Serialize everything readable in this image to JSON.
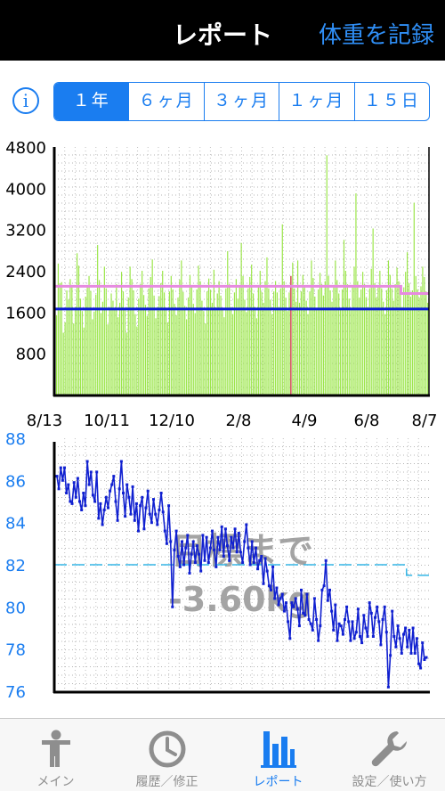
{
  "header": {
    "title": "レポート",
    "action_label": "体重を記録"
  },
  "info_icon": {
    "name": "info-icon",
    "glyph": "i"
  },
  "range_tabs": [
    {
      "label": "１年",
      "active": true
    },
    {
      "label": "６ヶ月",
      "active": false
    },
    {
      "label": "３ヶ月",
      "active": false
    },
    {
      "label": "１ヶ月",
      "active": false
    },
    {
      "label": "１５日",
      "active": false
    }
  ],
  "tabbar": [
    {
      "label": "メイン",
      "icon": "person-icon",
      "active": false
    },
    {
      "label": "履歴／修正",
      "icon": "clock-icon",
      "active": false
    },
    {
      "label": "レポート",
      "icon": "bar-chart-icon",
      "active": true
    },
    {
      "label": "設定／使い方",
      "icon": "wrench-icon",
      "active": false
    }
  ],
  "colors": {
    "accent": "#1a7df0",
    "calorie_bars": "#9be64a",
    "target_calorie_line": "#e78be0",
    "base_calorie_line": "#0a1bd6",
    "weight_line": "#1020d0",
    "goal_line": "#35b6e6",
    "overlay_text": "#9a9a9a"
  },
  "x_labels": [
    "8/13",
    "10/11",
    "12/10",
    "2/8",
    "4/9",
    "6/8",
    "8/7"
  ],
  "chart_data": [
    {
      "type": "bar",
      "title": "",
      "ylim": [
        0,
        4800
      ],
      "yticks": [
        800,
        1600,
        2400,
        3200,
        4000,
        4800
      ],
      "x_tick_labels": [
        "8/13",
        "10/11",
        "12/10",
        "2/8",
        "4/9",
        "6/8",
        "8/7"
      ],
      "grid": true,
      "reference_lines": [
        {
          "value_segments": [
            [
              0,
              0.925,
              2100
            ],
            [
              0.925,
              1.0,
              1960
            ]
          ],
          "color": "#e78be0"
        },
        {
          "value": 1660,
          "color": "#0a1bd6"
        }
      ],
      "series": [
        {
          "values": [
            2060,
            1540,
            2540,
            2160,
            2180,
            1200,
            1400,
            2020,
            1840,
            2240,
            2120,
            1380,
            1700,
            2740,
            2500,
            1860,
            1620,
            1300,
            1900,
            2080,
            2300,
            2010,
            1460,
            1610,
            1940,
            2900,
            2220,
            1580,
            1800,
            2480,
            2060,
            1360,
            1700,
            1960,
            1820,
            1680,
            2140,
            1500,
            1780,
            2380,
            2000,
            1640,
            1200,
            1880,
            2480,
            2240,
            2020,
            1560,
            1320,
            1860,
            2140,
            2400,
            1930,
            1740,
            1520,
            2060,
            2280,
            2620,
            1920,
            1480,
            1700,
            1910,
            2160,
            2400,
            1980,
            1640,
            1400,
            2000,
            2300,
            2040,
            1760,
            1540,
            1880,
            2230,
            2600,
            1990,
            1720,
            1460,
            1880,
            2320,
            2080,
            1760,
            1580,
            2040,
            2500,
            2200,
            1820,
            1620,
            1380,
            2000,
            2250,
            2030,
            1780,
            2420,
            1690,
            1960,
            2200,
            1920,
            1640,
            1500,
            2060,
            2780,
            2140,
            1700,
            1560,
            1980,
            2240,
            1860,
            2120,
            2940,
            2300,
            1840,
            1600,
            2060,
            2280,
            2520,
            1960,
            1700,
            1480,
            2100,
            2400,
            1990,
            1780,
            2200,
            2660,
            2060,
            1840,
            1560,
            2000,
            2200,
            1980,
            1700,
            2060,
            3300,
            2200,
            1880,
            1620,
            1980,
            2300,
            2560,
            2060,
            1800,
            2600,
            1780,
            2000,
            2320,
            2120,
            1820,
            1560,
            2000,
            2600,
            2260,
            1900,
            1680,
            2040,
            2360,
            2140,
            1920,
            2200,
            4640,
            2300,
            2020,
            1800,
            2100,
            2600,
            2220,
            1960,
            1680,
            2040,
            3000,
            2400,
            2140,
            1860,
            1640,
            2120,
            2480,
            3900,
            2200,
            1880,
            2040,
            2380,
            2140,
            1880,
            1700,
            2060,
            2440,
            3220,
            2160,
            1880,
            2100,
            2400,
            2060,
            1800,
            1560,
            2020,
            2600,
            2320,
            2060,
            1820,
            2140,
            2460,
            2200,
            1940,
            1700,
            2080,
            2380,
            2760,
            2160,
            1900,
            2020,
            3720,
            2300,
            2040,
            1880,
            2100,
            2480,
            2280,
            2000,
            1780
          ]
        }
      ]
    },
    {
      "type": "line",
      "title": "",
      "ylim": [
        76,
        88
      ],
      "yticks": [
        76,
        78,
        80,
        82,
        84,
        86,
        88
      ],
      "grid": true,
      "overlay_text": [
        "目標まで",
        "-3.60kg"
      ],
      "reference_lines": [
        {
          "value": 82.0,
          "style": "dashed",
          "color": "#35b6e6",
          "segments": [
            [
              0,
              0.94,
              82.0
            ],
            [
              0.94,
              1.0,
              81.5
            ]
          ]
        }
      ],
      "series": [
        {
          "values": [
            86.2,
            85.6,
            86.6,
            86.0,
            86.6,
            85.4,
            85.8,
            85.0,
            84.9,
            85.9,
            85.2,
            86.1,
            85.0,
            84.6,
            85.4,
            84.8,
            86.9,
            85.8,
            86.4,
            85.3,
            85.0,
            86.4,
            84.2,
            84.9,
            83.9,
            84.6,
            85.2,
            84.7,
            85.5,
            85.8,
            86.2,
            85.0,
            84.1,
            85.6,
            86.9,
            85.4,
            84.3,
            85.8,
            85.2,
            84.4,
            85.7,
            84.1,
            84.9,
            83.6,
            84.8,
            85.2,
            83.7,
            84.7,
            85.5,
            84.4,
            84.0,
            85.1,
            84.4,
            83.9,
            84.6,
            85.4,
            84.5,
            83.6,
            83.0,
            84.8,
            83.1,
            80.0,
            82.7,
            83.6,
            82.4,
            81.9,
            83.1,
            82.0,
            82.8,
            83.4,
            81.6,
            82.5,
            83.1,
            82.1,
            82.9,
            82.5,
            81.7,
            83.4,
            82.2,
            83.3,
            82.1,
            82.8,
            83.6,
            82.7,
            81.9,
            83.3,
            82.7,
            83.8,
            82.4,
            83.7,
            82.9,
            82.2,
            83.3,
            82.8,
            83.7,
            82.6,
            83.5,
            82.6,
            82.1,
            83.1,
            83.9,
            82.8,
            82.0,
            83.1,
            82.1,
            82.8,
            81.8,
            82.2,
            82.4,
            81.1,
            82.3,
            81.7,
            81.0,
            80.8,
            81.9,
            80.4,
            80.9,
            80.1,
            80.4,
            80.6,
            79.8,
            80.2,
            79.3,
            78.5,
            80.2,
            80.0,
            80.4,
            79.9,
            79.1,
            80.8,
            79.7,
            79.6,
            80.6,
            79.4,
            79.2,
            78.9,
            80.4,
            79.4,
            78.4,
            79.1,
            80.8,
            81.0,
            82.2,
            80.3,
            80.8,
            79.8,
            78.9,
            80.1,
            78.4,
            79.2,
            79.1,
            78.7,
            79.4,
            80.0,
            79.3,
            78.4,
            79.3,
            78.5,
            78.8,
            79.9,
            78.6,
            78.3,
            79.6,
            79.0,
            78.6,
            80.2,
            79.7,
            78.6,
            79.5,
            80.0,
            79.3,
            78.2,
            79.4,
            80.0,
            78.8,
            76.2,
            77.7,
            79.8,
            78.6,
            78.1,
            79.1,
            78.5,
            77.8,
            78.7,
            79.0,
            78.1,
            78.9,
            77.8,
            79.0,
            77.8,
            78.5,
            77.3,
            77.1,
            78.3,
            77.5,
            77.6
          ]
        }
      ]
    }
  ]
}
